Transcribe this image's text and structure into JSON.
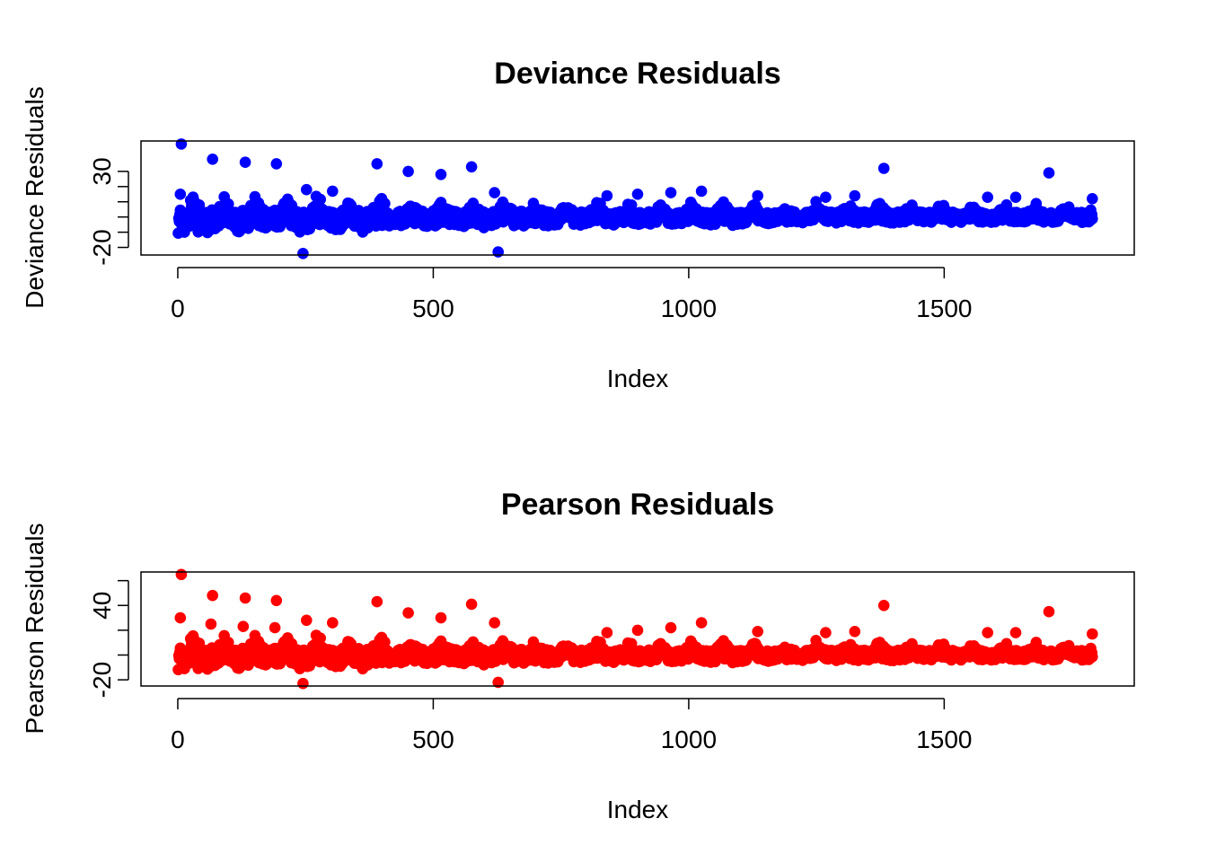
{
  "chart_data": [
    {
      "type": "scatter",
      "title": "Deviance Residuals",
      "xlabel": "Index",
      "ylabel": "Deviance Residuals",
      "xlim": [
        -72,
        1872
      ],
      "ylim": [
        -25,
        50
      ],
      "x_ticks": [
        0,
        500,
        1000,
        1500
      ],
      "x_tick_labels": [
        "0",
        "500",
        "1000",
        "1500"
      ],
      "y_ticks": [
        -20,
        -10,
        0,
        10,
        20,
        30
      ],
      "y_tick_labels": [
        "-20",
        "30"
      ],
      "color": "#0000ff",
      "marker": "filled-circle",
      "grid": false,
      "n_points": 1790,
      "outliers": [
        {
          "x": 7,
          "y": 48
        },
        {
          "x": 5,
          "y": 15
        },
        {
          "x": 68,
          "y": 38
        },
        {
          "x": 132,
          "y": 36
        },
        {
          "x": 193,
          "y": 35
        },
        {
          "x": 252,
          "y": 18
        },
        {
          "x": 303,
          "y": 17
        },
        {
          "x": 390,
          "y": 35
        },
        {
          "x": 451,
          "y": 30
        },
        {
          "x": 515,
          "y": 28
        },
        {
          "x": 575,
          "y": 33
        },
        {
          "x": 245,
          "y": -24
        },
        {
          "x": 627,
          "y": -23
        },
        {
          "x": 620,
          "y": 16
        },
        {
          "x": 1382,
          "y": 32
        },
        {
          "x": 1705,
          "y": 29
        },
        {
          "x": 1025,
          "y": 17
        },
        {
          "x": 965,
          "y": 16
        },
        {
          "x": 900,
          "y": 15
        },
        {
          "x": 840,
          "y": 14
        },
        {
          "x": 1135,
          "y": 14
        },
        {
          "x": 1268,
          "y": 13
        },
        {
          "x": 1325,
          "y": 14
        },
        {
          "x": 1640,
          "y": 13
        },
        {
          "x": 1585,
          "y": 13
        },
        {
          "x": 1790,
          "y": 12
        }
      ]
    },
    {
      "type": "scatter",
      "title": "Pearson Residuals",
      "xlabel": "Index",
      "ylabel": "Pearson Residuals",
      "xlim": [
        -72,
        1872
      ],
      "ylim": [
        -25,
        67
      ],
      "x_ticks": [
        0,
        500,
        1000,
        1500
      ],
      "x_tick_labels": [
        "0",
        "500",
        "1000",
        "1500"
      ],
      "y_ticks": [
        -20,
        0,
        20,
        40,
        60
      ],
      "y_tick_labels": [
        "-20",
        "40"
      ],
      "color": "#ff0000",
      "marker": "filled-circle",
      "grid": false,
      "n_points": 1790,
      "outliers": [
        {
          "x": 7,
          "y": 65
        },
        {
          "x": 5,
          "y": 30
        },
        {
          "x": 68,
          "y": 48
        },
        {
          "x": 65,
          "y": 25
        },
        {
          "x": 132,
          "y": 46
        },
        {
          "x": 128,
          "y": 23
        },
        {
          "x": 193,
          "y": 44
        },
        {
          "x": 190,
          "y": 22
        },
        {
          "x": 252,
          "y": 28
        },
        {
          "x": 303,
          "y": 26
        },
        {
          "x": 390,
          "y": 43
        },
        {
          "x": 451,
          "y": 34
        },
        {
          "x": 515,
          "y": 30
        },
        {
          "x": 575,
          "y": 41
        },
        {
          "x": 245,
          "y": -23
        },
        {
          "x": 627,
          "y": -22
        },
        {
          "x": 620,
          "y": 26
        },
        {
          "x": 1382,
          "y": 40
        },
        {
          "x": 1705,
          "y": 35
        },
        {
          "x": 1025,
          "y": 26
        },
        {
          "x": 965,
          "y": 22
        },
        {
          "x": 900,
          "y": 20
        },
        {
          "x": 840,
          "y": 18
        },
        {
          "x": 1135,
          "y": 19
        },
        {
          "x": 1268,
          "y": 18
        },
        {
          "x": 1325,
          "y": 19
        },
        {
          "x": 1640,
          "y": 18
        },
        {
          "x": 1585,
          "y": 18
        },
        {
          "x": 1790,
          "y": 17
        }
      ]
    }
  ]
}
